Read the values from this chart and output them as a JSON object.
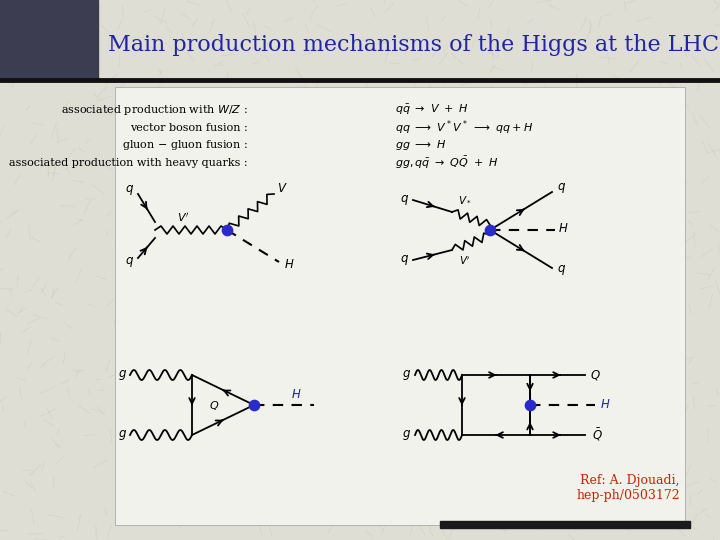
{
  "title": "Main production mechanisms of the Higgs at the LHC",
  "title_color": "#2222aa",
  "title_fontsize": 16,
  "ref_text": "Ref: A. Djouadi,\nhep-ph/0503172",
  "ref_color": "#cc2200",
  "ref_fontsize": 9,
  "bg_color": "#deded4",
  "header_block_color": "#3d3d52",
  "content_bg": "#f0f0e8",
  "line_dark": "#1a1a1a",
  "dot_color": "#2b2bcc"
}
